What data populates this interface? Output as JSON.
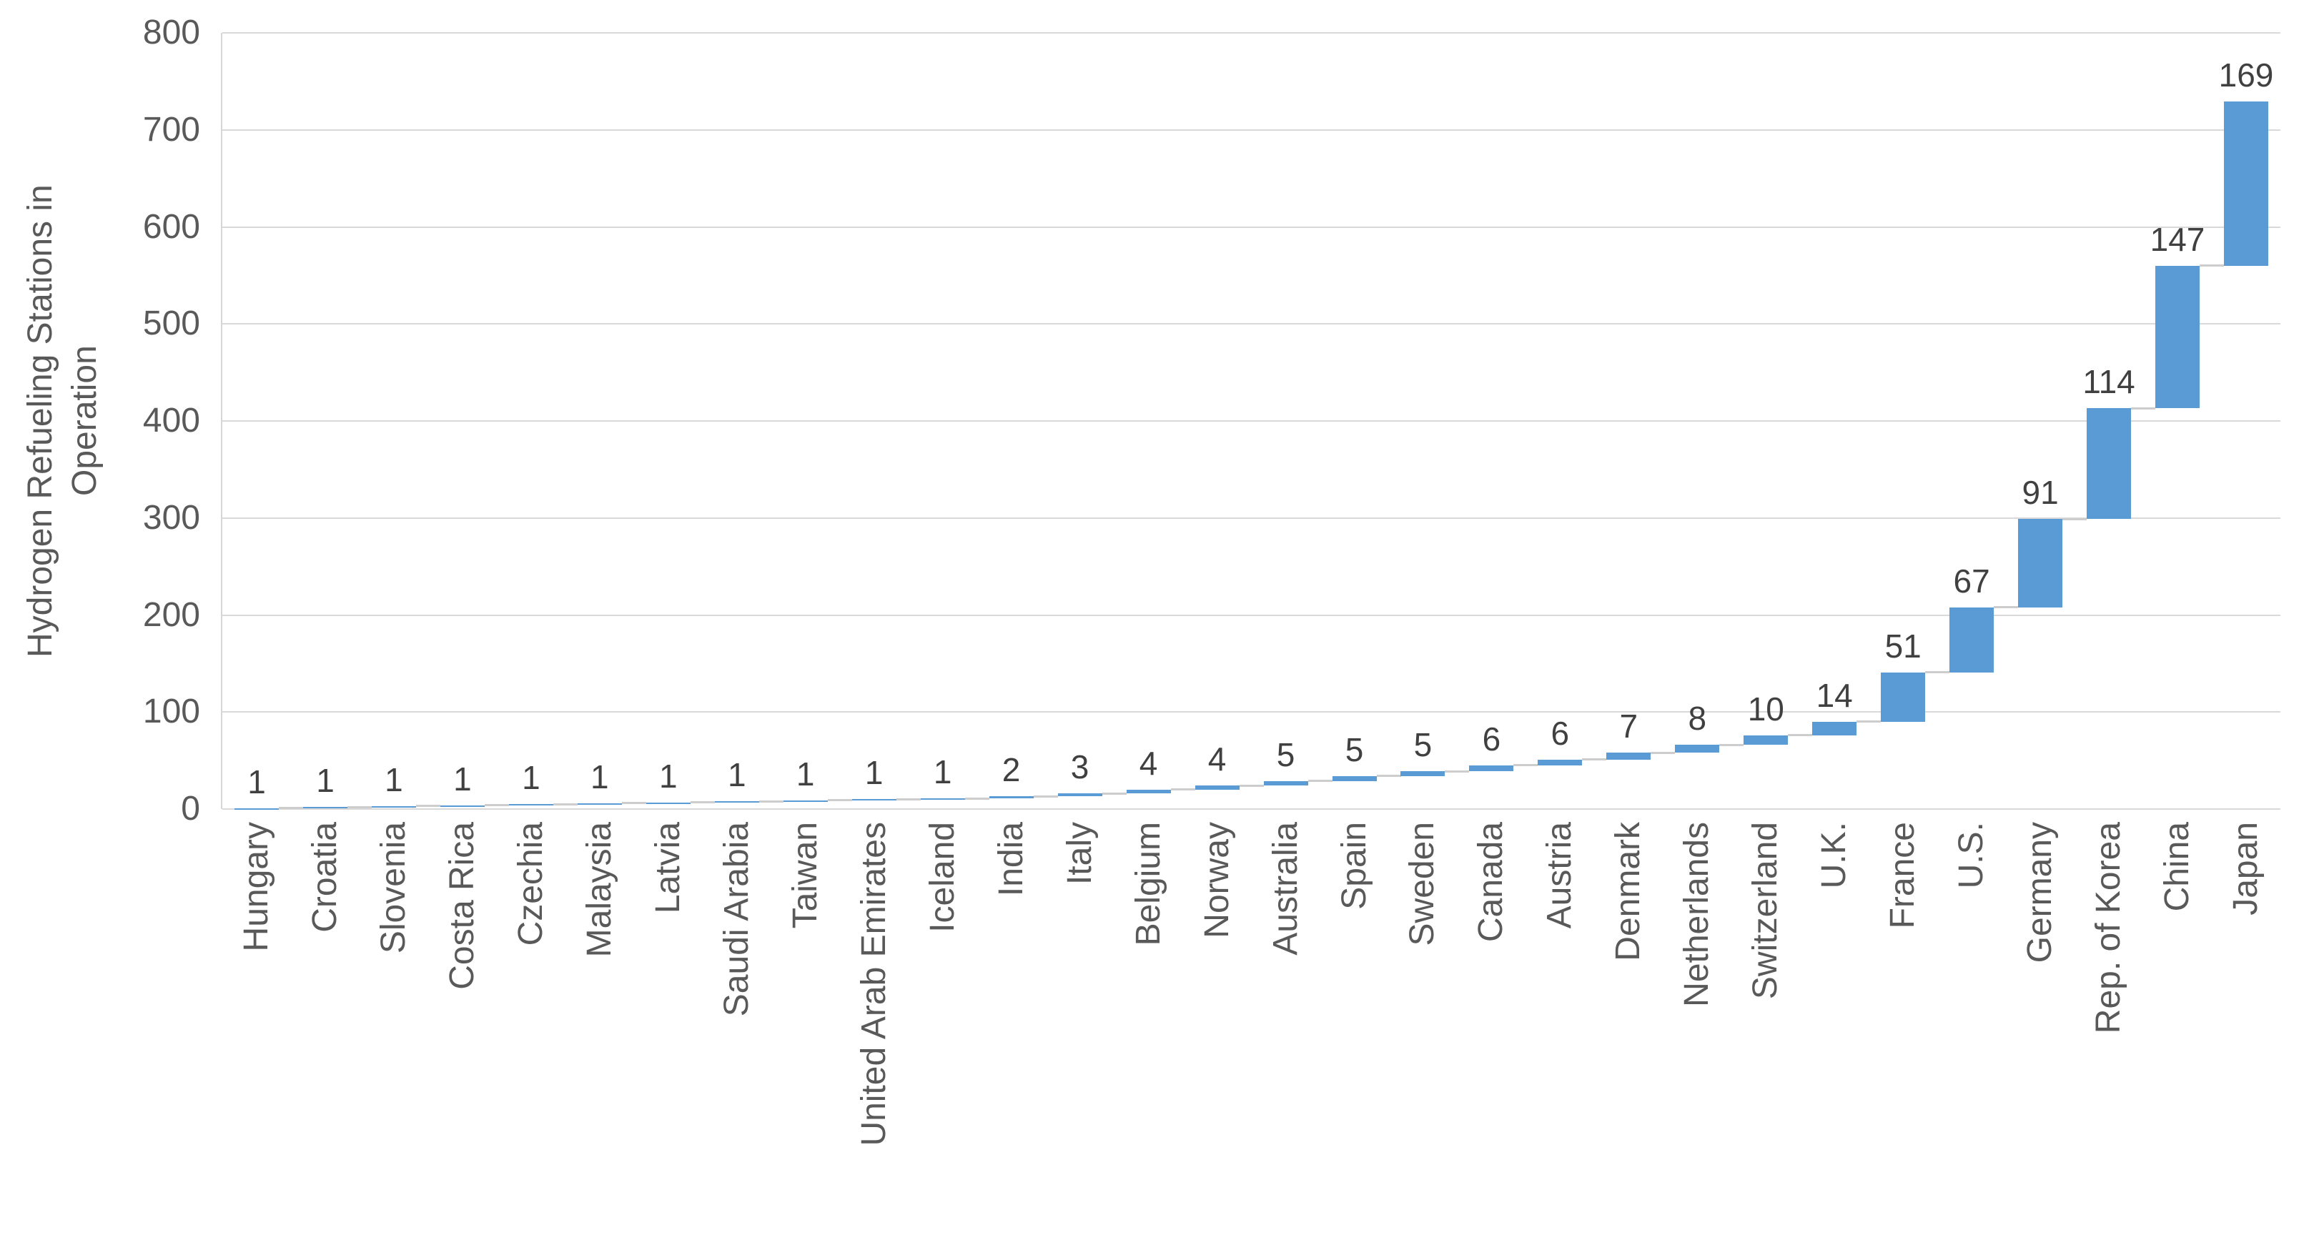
{
  "chart_data": {
    "type": "bar",
    "subtype": "waterfall",
    "title": "",
    "xlabel": "",
    "ylabel": "Hydrogen Refueling Stations in\nOperation",
    "categories": [
      "Hungary",
      "Croatia",
      "Slovenia",
      "Costa Rica",
      "Czechia",
      "Malaysia",
      "Latvia",
      "Saudi Arabia",
      "Taiwan",
      "United Arab Emirates",
      "Iceland",
      "India",
      "Italy",
      "Belgium",
      "Norway",
      "Australia",
      "Spain",
      "Sweden",
      "Canada",
      "Austria",
      "Denmark",
      "Netherlands",
      "Switzerland",
      "U.K.",
      "France",
      "U.S.",
      "Germany",
      "Rep. of Korea",
      "China",
      "Japan"
    ],
    "values": [
      1,
      1,
      1,
      1,
      1,
      1,
      1,
      1,
      1,
      1,
      1,
      2,
      3,
      4,
      4,
      5,
      5,
      5,
      6,
      6,
      7,
      8,
      10,
      14,
      51,
      67,
      91,
      114,
      147,
      169
    ],
    "data_labels_shown": true,
    "ylim": [
      0,
      800
    ],
    "yticks": [
      0,
      100,
      200,
      300,
      400,
      500,
      600,
      700,
      800
    ],
    "grid": true,
    "legend": false,
    "bar_color": "#5B9BD5",
    "connector_color": "#CDCDCD",
    "gridline_color": "#D9D9D9",
    "axis_line_color": "#D6D6D6",
    "data_label_color": "#404040",
    "axis_text_color": "#595959"
  }
}
